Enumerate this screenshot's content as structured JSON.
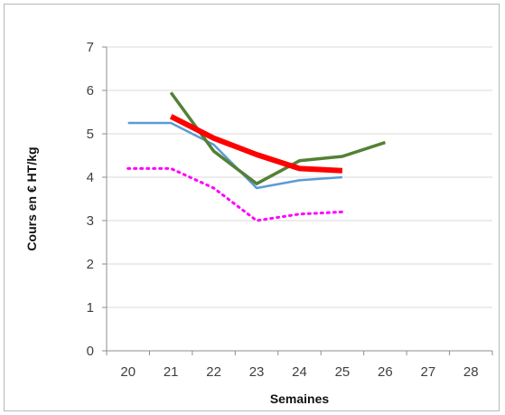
{
  "chart_data": {
    "type": "line",
    "title": "",
    "xlabel": "Semaines",
    "ylabel": "Cours en € HT/kg",
    "x_ticks": [
      "20",
      "21",
      "22",
      "23",
      "24",
      "25",
      "26",
      "27",
      "28"
    ],
    "y_ticks": [
      "0",
      "1",
      "2",
      "3",
      "4",
      "5",
      "6",
      "7"
    ],
    "xlim": [
      20,
      28
    ],
    "ylim": [
      0,
      7
    ],
    "grid": "horizontal",
    "legend": "none",
    "series": [
      {
        "color": "#5b9bd5",
        "style": "solid",
        "width": 2.5,
        "x": [
          20,
          21,
          22,
          23,
          24,
          25
        ],
        "values": [
          5.25,
          5.25,
          4.75,
          3.75,
          3.93,
          4.0
        ]
      },
      {
        "color": "#ff00ff",
        "style": "dotted",
        "width": 3,
        "x": [
          20,
          21,
          22,
          23,
          24,
          25
        ],
        "values": [
          4.2,
          4.2,
          3.75,
          3.0,
          3.15,
          3.2
        ]
      },
      {
        "color": "#538135",
        "style": "solid",
        "width": 3.5,
        "x": [
          21,
          22,
          23,
          24,
          25,
          26
        ],
        "values": [
          5.95,
          4.6,
          3.85,
          4.38,
          4.48,
          4.8
        ]
      },
      {
        "color": "#ff0000",
        "style": "solid",
        "width": 6,
        "x": [
          21,
          22,
          23,
          24,
          25
        ],
        "values": [
          5.4,
          4.9,
          4.52,
          4.2,
          4.15
        ]
      }
    ]
  }
}
